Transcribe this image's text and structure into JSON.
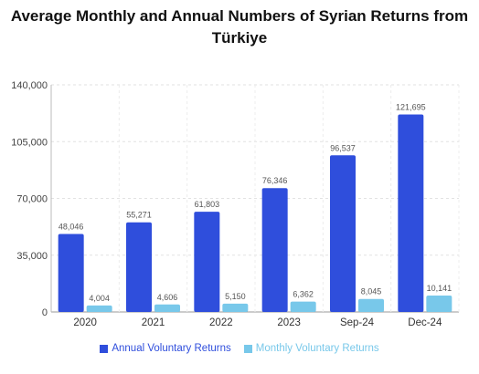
{
  "chart_data": {
    "type": "bar",
    "title_line1": "Average Monthly and Annual Numbers of Syrian Returns from",
    "title_line2": "Türkiye",
    "categories": [
      "2020",
      "2021",
      "2022",
      "2023",
      "Sep-24",
      "Dec-24"
    ],
    "series": [
      {
        "name": "Annual Voluntary Returns",
        "values": [
          48046,
          55271,
          61803,
          76346,
          96537,
          121695
        ],
        "labels": [
          "48,046",
          "55,271",
          "61,803",
          "76,346",
          "96,537",
          "121,695"
        ],
        "color": "#2f4edc"
      },
      {
        "name": "Monthly Voluntary Returns",
        "values": [
          4004,
          4606,
          5150,
          6362,
          8045,
          10141
        ],
        "labels": [
          "4,004",
          "4,606",
          "5,150",
          "6,362",
          "8,045",
          "10,141"
        ],
        "color": "#78c8ea"
      }
    ],
    "ylim": [
      0,
      140000
    ],
    "yticks": [
      0,
      35000,
      70000,
      105000,
      140000
    ],
    "ytick_labels": [
      "0",
      "35,000",
      "70,000",
      "105,000",
      "140,000"
    ],
    "grid": true,
    "legend_position": "bottom",
    "xlabel": "",
    "ylabel": ""
  }
}
